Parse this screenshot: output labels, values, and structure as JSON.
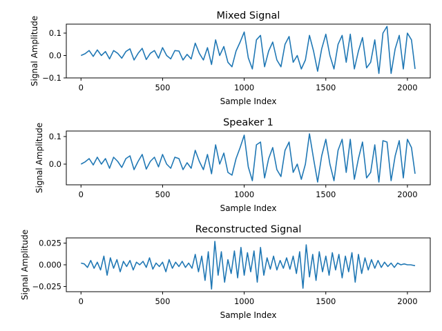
{
  "chart_data": [
    {
      "type": "line",
      "title": "Mixed Signal",
      "xlabel": "Sample Index",
      "ylabel": "Signal Amplitude",
      "xlim": [
        -90,
        2140
      ],
      "ylim": [
        -0.1,
        0.14
      ],
      "xticks": [
        0,
        500,
        1000,
        1500,
        2000
      ],
      "xtick_labels": [
        "0",
        "500",
        "1000",
        "1500",
        "2000"
      ],
      "yticks": [
        -0.1,
        0.0,
        0.1
      ],
      "ytick_labels": [
        "−0.1",
        "0.0",
        "0.1"
      ],
      "grid": false,
      "color": "#1f77b4",
      "series": [
        {
          "x": [
            0,
            25,
            50,
            75,
            100,
            125,
            150,
            175,
            200,
            225,
            250,
            275,
            300,
            325,
            350,
            375,
            400,
            425,
            450,
            475,
            500,
            525,
            550,
            575,
            600,
            625,
            650,
            675,
            700,
            725,
            750,
            775,
            800,
            825,
            850,
            875,
            900,
            925,
            950,
            975,
            1000,
            1025,
            1050,
            1075,
            1100,
            1125,
            1150,
            1175,
            1200,
            1225,
            1250,
            1275,
            1300,
            1325,
            1350,
            1375,
            1400,
            1425,
            1450,
            1475,
            1500,
            1525,
            1550,
            1575,
            1600,
            1625,
            1650,
            1675,
            1700,
            1725,
            1750,
            1775,
            1800,
            1825,
            1850,
            1875,
            1900,
            1925,
            1950,
            1975,
            2000,
            2025,
            2047
          ],
          "values": [
            0.0,
            0.008,
            0.022,
            -0.004,
            0.025,
            0.0,
            0.018,
            -0.015,
            0.022,
            0.01,
            -0.012,
            0.018,
            0.03,
            -0.02,
            0.01,
            0.032,
            -0.018,
            0.01,
            0.022,
            -0.012,
            0.035,
            0.0,
            -0.015,
            0.022,
            0.02,
            -0.02,
            0.005,
            -0.015,
            0.055,
            0.01,
            -0.02,
            0.035,
            -0.04,
            0.07,
            0.0,
            0.04,
            -0.03,
            -0.05,
            0.02,
            0.06,
            0.105,
            -0.01,
            -0.06,
            0.07,
            0.09,
            -0.05,
            0.02,
            0.06,
            -0.02,
            -0.05,
            0.05,
            0.085,
            -0.03,
            0.0,
            -0.06,
            -0.02,
            0.09,
            0.02,
            -0.07,
            0.03,
            0.095,
            0.0,
            -0.06,
            0.05,
            0.09,
            -0.03,
            0.095,
            -0.06,
            0.02,
            0.08,
            -0.055,
            -0.03,
            0.07,
            -0.08,
            0.1,
            0.13,
            -0.08,
            0.03,
            0.09,
            -0.06,
            0.1,
            0.07,
            -0.06
          ]
        }
      ]
    },
    {
      "type": "line",
      "title": "Speaker 1",
      "xlabel": "Sample Index",
      "ylabel": "Signal Amplitude",
      "xlim": [
        -90,
        2140
      ],
      "ylim": [
        -0.075,
        0.12
      ],
      "xticks": [
        0,
        500,
        1000,
        1500,
        2000
      ],
      "xtick_labels": [
        "0",
        "500",
        "1000",
        "1500",
        "2000"
      ],
      "yticks": [
        0.0,
        0.1
      ],
      "ytick_labels": [
        "0.0",
        "0.1"
      ],
      "grid": false,
      "color": "#1f77b4",
      "series": [
        {
          "x": [
            0,
            25,
            50,
            75,
            100,
            125,
            150,
            175,
            200,
            225,
            250,
            275,
            300,
            325,
            350,
            375,
            400,
            425,
            450,
            475,
            500,
            525,
            550,
            575,
            600,
            625,
            650,
            675,
            700,
            725,
            750,
            775,
            800,
            825,
            850,
            875,
            900,
            925,
            950,
            975,
            1000,
            1025,
            1050,
            1075,
            1100,
            1125,
            1150,
            1175,
            1200,
            1225,
            1250,
            1275,
            1300,
            1325,
            1350,
            1375,
            1400,
            1425,
            1450,
            1475,
            1500,
            1525,
            1550,
            1575,
            1600,
            1625,
            1650,
            1675,
            1700,
            1725,
            1750,
            1775,
            1800,
            1825,
            1850,
            1875,
            1900,
            1925,
            1950,
            1975,
            2000,
            2025,
            2047
          ],
          "values": [
            0.0,
            0.008,
            0.02,
            -0.003,
            0.025,
            0.0,
            0.02,
            -0.015,
            0.025,
            0.01,
            -0.012,
            0.02,
            0.03,
            -0.02,
            0.01,
            0.035,
            -0.018,
            0.01,
            0.025,
            -0.01,
            0.035,
            0.0,
            -0.015,
            0.025,
            0.02,
            -0.02,
            0.005,
            -0.015,
            0.05,
            0.01,
            -0.02,
            0.035,
            -0.035,
            0.07,
            0.0,
            0.04,
            -0.03,
            -0.04,
            0.02,
            0.06,
            0.105,
            -0.01,
            -0.06,
            0.07,
            0.08,
            -0.05,
            0.02,
            0.06,
            -0.02,
            -0.045,
            0.05,
            0.08,
            -0.03,
            0.0,
            -0.055,
            0.0,
            0.11,
            0.02,
            -0.065,
            0.03,
            0.09,
            0.0,
            -0.06,
            0.05,
            0.09,
            -0.03,
            0.09,
            -0.055,
            0.02,
            0.08,
            -0.05,
            -0.03,
            0.07,
            -0.065,
            0.085,
            0.08,
            -0.06,
            0.03,
            0.085,
            -0.05,
            0.09,
            0.06,
            -0.035
          ]
        }
      ]
    },
    {
      "type": "line",
      "title": "Reconstructed Signal",
      "xlabel": "Sample Index",
      "ylabel": "Signal Amplitude",
      "xlim": [
        -90,
        2140
      ],
      "ylim": [
        -0.031,
        0.031
      ],
      "xticks": [
        0,
        500,
        1000,
        1500,
        2000
      ],
      "xtick_labels": [
        "0",
        "500",
        "1000",
        "1500",
        "2000"
      ],
      "yticks": [
        -0.025,
        0.0,
        0.025
      ],
      "ytick_labels": [
        "−0.025",
        "0.000",
        "0.025"
      ],
      "grid": false,
      "color": "#1f77b4",
      "series": [
        {
          "x": [
            0,
            20,
            40,
            60,
            80,
            100,
            120,
            140,
            160,
            180,
            200,
            220,
            240,
            260,
            280,
            300,
            320,
            340,
            360,
            380,
            400,
            420,
            440,
            460,
            480,
            500,
            520,
            540,
            560,
            580,
            600,
            620,
            640,
            660,
            680,
            700,
            720,
            740,
            760,
            780,
            800,
            820,
            840,
            860,
            880,
            900,
            920,
            940,
            960,
            980,
            1000,
            1020,
            1040,
            1060,
            1080,
            1100,
            1120,
            1140,
            1160,
            1180,
            1200,
            1220,
            1240,
            1260,
            1280,
            1300,
            1320,
            1340,
            1360,
            1380,
            1400,
            1420,
            1440,
            1460,
            1480,
            1500,
            1520,
            1540,
            1560,
            1580,
            1600,
            1620,
            1640,
            1660,
            1680,
            1700,
            1720,
            1740,
            1760,
            1780,
            1800,
            1820,
            1840,
            1860,
            1880,
            1900,
            1920,
            1940,
            1960,
            1980,
            2000,
            2020,
            2047
          ],
          "values": [
            0.002,
            0.001,
            -0.003,
            0.005,
            -0.004,
            0.003,
            -0.006,
            0.01,
            -0.012,
            0.008,
            -0.004,
            0.006,
            -0.008,
            0.004,
            -0.002,
            0.005,
            -0.006,
            0.003,
            0.0,
            0.004,
            -0.003,
            0.008,
            -0.005,
            0.002,
            -0.002,
            0.003,
            -0.008,
            0.006,
            -0.004,
            0.003,
            -0.002,
            0.004,
            -0.003,
            0.002,
            -0.004,
            0.012,
            -0.008,
            0.01,
            -0.018,
            0.015,
            -0.028,
            0.027,
            -0.012,
            0.015,
            -0.02,
            0.006,
            -0.01,
            0.016,
            -0.015,
            0.02,
            -0.012,
            0.014,
            -0.008,
            0.016,
            -0.02,
            0.02,
            -0.012,
            0.008,
            -0.005,
            0.01,
            -0.006,
            0.005,
            -0.004,
            0.008,
            -0.005,
            0.01,
            -0.01,
            0.015,
            -0.027,
            0.023,
            -0.014,
            0.012,
            -0.018,
            0.015,
            -0.008,
            0.01,
            -0.012,
            0.014,
            -0.006,
            0.012,
            -0.015,
            0.01,
            -0.008,
            0.014,
            -0.02,
            0.012,
            -0.01,
            0.008,
            -0.006,
            0.006,
            -0.004,
            0.005,
            -0.003,
            0.003,
            -0.002,
            0.002,
            -0.003,
            0.002,
            0.0,
            0.001,
            0.0,
            0.0,
            -0.001
          ]
        }
      ]
    }
  ]
}
